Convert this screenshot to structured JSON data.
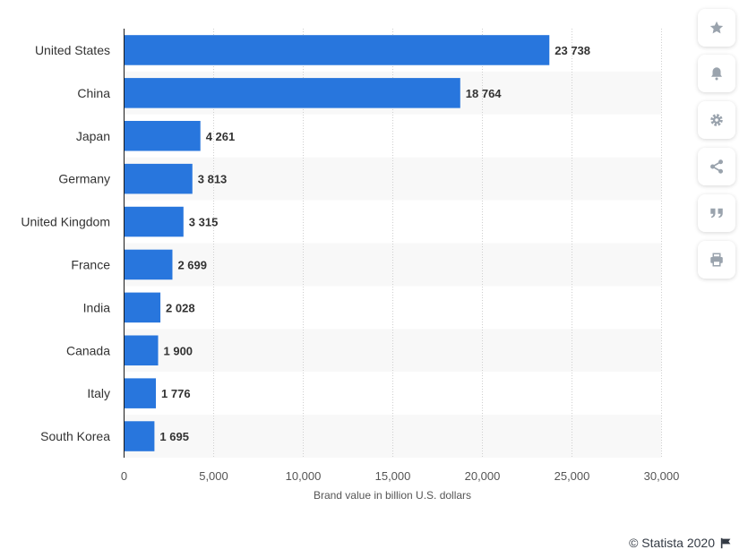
{
  "chart_data": {
    "type": "bar",
    "orientation": "horizontal",
    "categories": [
      "United States",
      "China",
      "Japan",
      "Germany",
      "United Kingdom",
      "France",
      "India",
      "Canada",
      "Italy",
      "South Korea"
    ],
    "values": [
      23738,
      18764,
      4261,
      3813,
      3315,
      2699,
      2028,
      1900,
      1776,
      1695
    ],
    "value_labels": [
      "23 738",
      "18 764",
      "4 261",
      "3 813",
      "3 315",
      "2 699",
      "2 028",
      "1 900",
      "1 776",
      "1 695"
    ],
    "xlabel": "Brand value in billion U.S. dollars",
    "ylabel": "",
    "xlim": [
      0,
      30000
    ],
    "xticks": [
      0,
      5000,
      10000,
      15000,
      20000,
      25000,
      30000
    ],
    "xtick_labels": [
      "0",
      "5,000",
      "10,000",
      "15,000",
      "20,000",
      "25,000",
      "30,000"
    ],
    "bar_color": "#2876dd",
    "grid": true
  },
  "toolbar": {
    "icons": [
      "star-icon",
      "bell-icon",
      "gear-icon",
      "share-icon",
      "quote-icon",
      "print-icon"
    ]
  },
  "credit": {
    "text": "© Statista 2020"
  }
}
